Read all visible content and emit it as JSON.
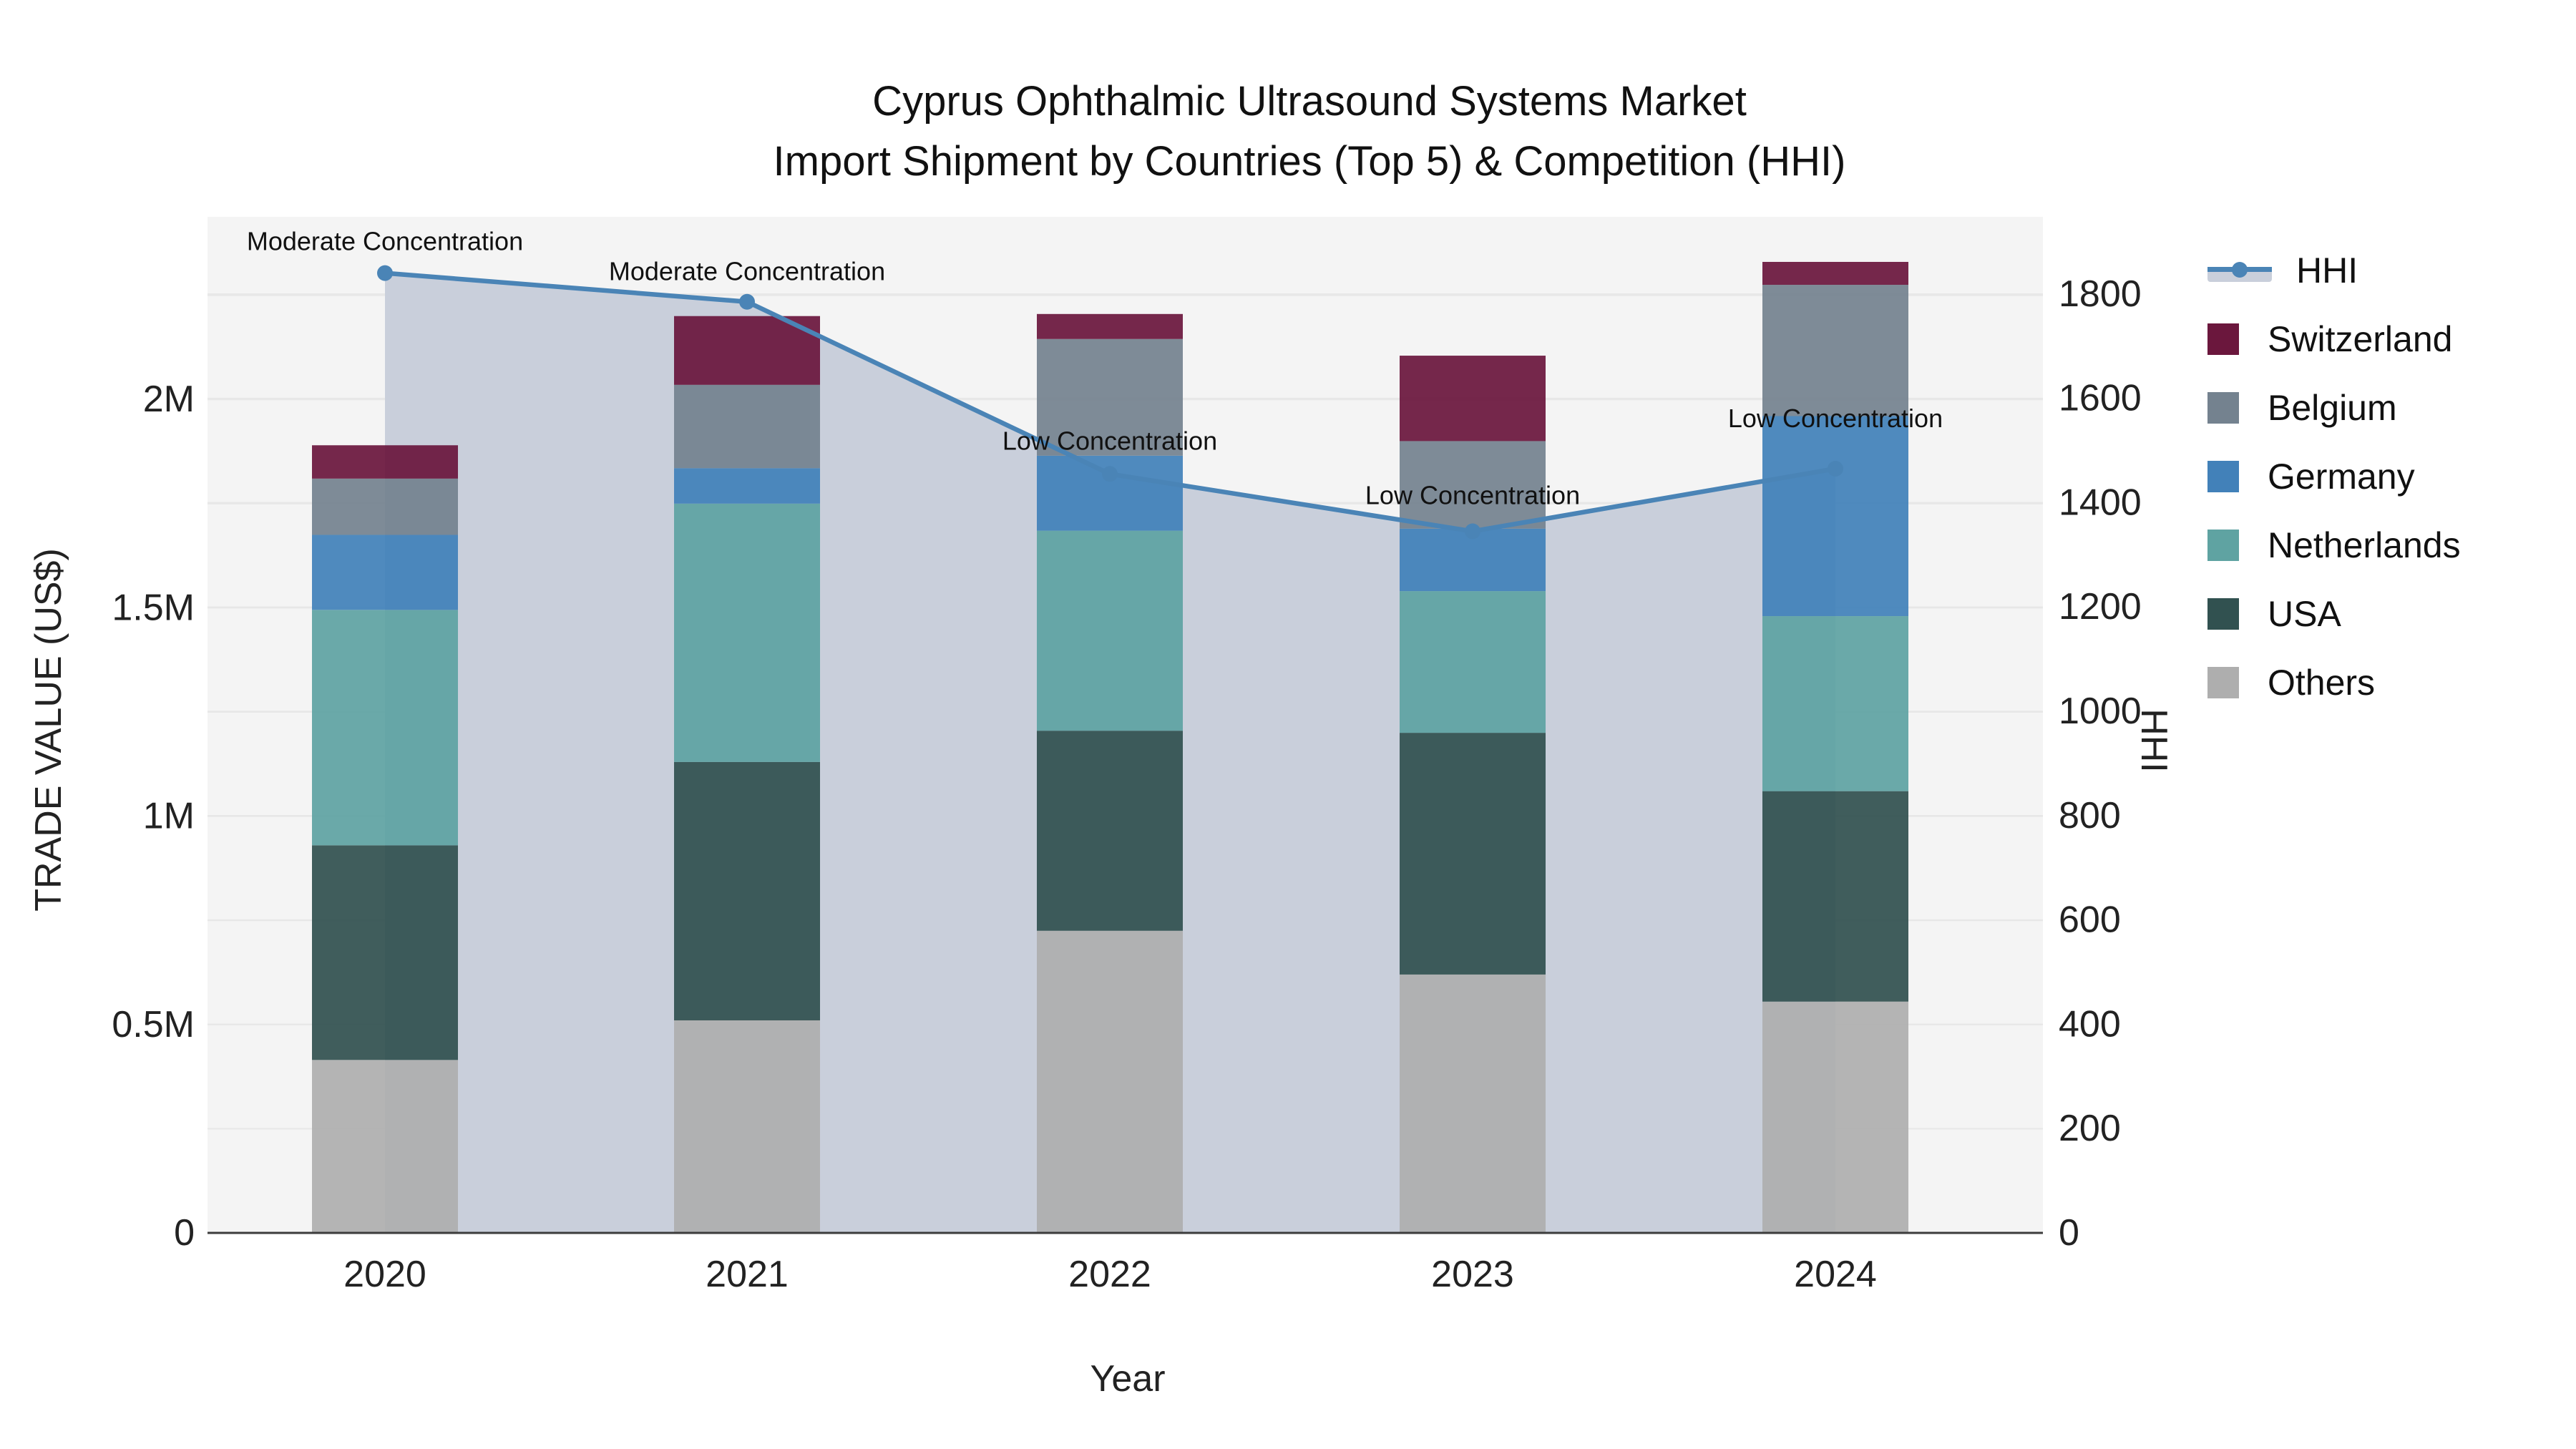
{
  "chart_data": {
    "type": "bar+line",
    "title_line1": "Cyprus Ophthalmic Ultrasound Systems Market",
    "title_line2": "Import Shipment by Countries (Top 5) & Competition (HHI)",
    "xlabel": "Year",
    "ylabel_left": "TRADE VALUE (US$)",
    "ylabel_right": "HHI",
    "categories": [
      "2020",
      "2021",
      "2022",
      "2023",
      "2024"
    ],
    "series": [
      {
        "name": "Others",
        "color": "#AEAEAE",
        "values": [
          415000,
          510000,
          725000,
          620000,
          555000
        ]
      },
      {
        "name": "USA",
        "color": "#315150",
        "values": [
          515000,
          620000,
          480000,
          580000,
          505000
        ]
      },
      {
        "name": "Netherlands",
        "color": "#5FA3A2",
        "values": [
          565000,
          620000,
          480000,
          340000,
          420000
        ]
      },
      {
        "name": "Germany",
        "color": "#4281B9",
        "values": [
          180000,
          85000,
          180000,
          150000,
          480000
        ]
      },
      {
        "name": "Belgium",
        "color": "#74828F",
        "values": [
          135000,
          200000,
          280000,
          210000,
          315000
        ]
      },
      {
        "name": "Switzerland",
        "color": "#6B173D",
        "values": [
          80000,
          165000,
          60000,
          205000,
          55000
        ]
      }
    ],
    "hhi": {
      "name": "HHI",
      "color": "#4A84B6",
      "fill_color": "#C9CFDB",
      "values": [
        1840,
        1785,
        1455,
        1345,
        1465
      ],
      "annotations": [
        "Moderate Concentration",
        "Moderate Concentration",
        "Low Concentration",
        "Low Concentration",
        "Low Concentration"
      ]
    },
    "legend_order": [
      "HHI",
      "Switzerland",
      "Belgium",
      "Germany",
      "Netherlands",
      "USA",
      "Others"
    ],
    "left_axis": {
      "tick_labels": [
        "0",
        "0.5M",
        "1M",
        "1.5M",
        "2M"
      ],
      "tick_values": [
        0,
        0.5,
        1,
        1.5,
        2
      ],
      "grid_step": 0.25,
      "max": 2.44
    },
    "right_axis": {
      "tick_labels": [
        "0",
        "200",
        "400",
        "600",
        "800",
        "1000",
        "1200",
        "1400",
        "1600",
        "1800"
      ],
      "tick_values": [
        0,
        200,
        400,
        600,
        800,
        1000,
        1200,
        1400,
        1600,
        1800
      ],
      "grid_step": 200,
      "max": 1948
    },
    "colors": {
      "plot_bg": "#F4F4F4",
      "grid": "#E7E7E7",
      "axis_line": "#3C3C3C",
      "text": "#111111"
    }
  }
}
